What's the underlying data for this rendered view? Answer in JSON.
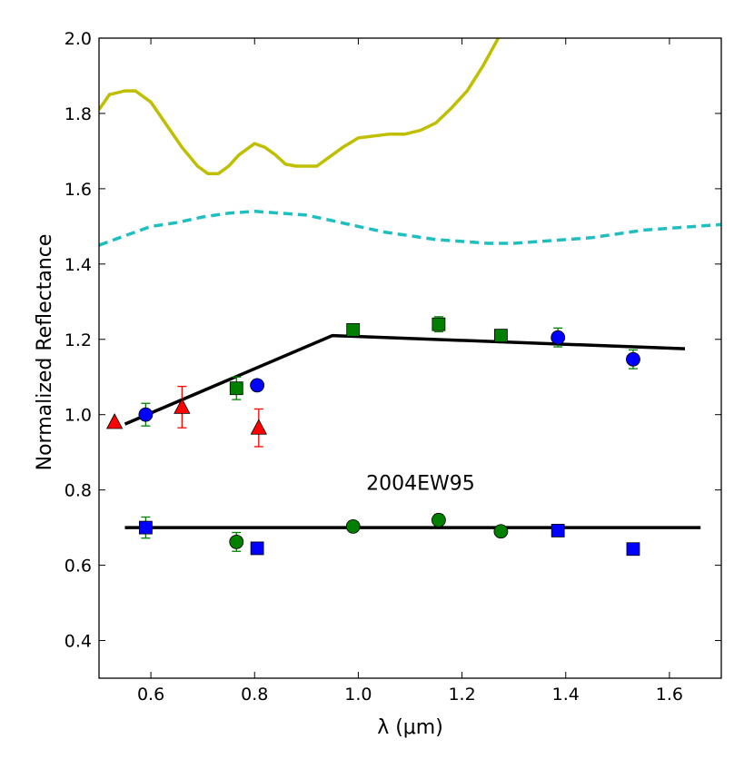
{
  "chart_data": {
    "type": "scatter",
    "title": "",
    "xlabel": "λ (μm)",
    "ylabel": "Normalized Reflectance",
    "xlim": [
      0.5,
      1.7
    ],
    "ylim": [
      0.3,
      2.0
    ],
    "xticks": [
      "0.6",
      "0.8",
      "1.0",
      "1.2",
      "1.4",
      "1.6"
    ],
    "xtick_values": [
      0.6,
      0.8,
      1.0,
      1.2,
      1.4,
      1.6
    ],
    "yticks": [
      "0.4",
      "0.6",
      "0.8",
      "1.0",
      "1.2",
      "1.4",
      "1.6",
      "1.8",
      "2.0"
    ],
    "ytick_values": [
      0.4,
      0.6,
      0.8,
      1.0,
      1.2,
      1.4,
      1.6,
      1.8,
      2.0
    ],
    "annotations": [
      {
        "text": "2004EW95",
        "x": 1.12,
        "y": 0.82
      }
    ],
    "series": [
      {
        "name": "reference-spectrum-solid",
        "kind": "line",
        "color": "#bfbf00",
        "dash": "solid",
        "points": [
          [
            0.5,
            1.81
          ],
          [
            0.52,
            1.85
          ],
          [
            0.55,
            1.86
          ],
          [
            0.57,
            1.86
          ],
          [
            0.6,
            1.83
          ],
          [
            0.63,
            1.77
          ],
          [
            0.66,
            1.71
          ],
          [
            0.69,
            1.66
          ],
          [
            0.71,
            1.64
          ],
          [
            0.73,
            1.64
          ],
          [
            0.75,
            1.66
          ],
          [
            0.77,
            1.69
          ],
          [
            0.79,
            1.71
          ],
          [
            0.8,
            1.72
          ],
          [
            0.82,
            1.71
          ],
          [
            0.84,
            1.69
          ],
          [
            0.86,
            1.665
          ],
          [
            0.88,
            1.66
          ],
          [
            0.9,
            1.66
          ],
          [
            0.92,
            1.66
          ],
          [
            0.94,
            1.68
          ],
          [
            0.97,
            1.71
          ],
          [
            1.0,
            1.735
          ],
          [
            1.03,
            1.74
          ],
          [
            1.06,
            1.745
          ],
          [
            1.09,
            1.745
          ],
          [
            1.12,
            1.755
          ],
          [
            1.15,
            1.775
          ],
          [
            1.18,
            1.815
          ],
          [
            1.21,
            1.86
          ],
          [
            1.24,
            1.925
          ],
          [
            1.27,
            2.0
          ]
        ]
      },
      {
        "name": "reference-spectrum-dashed",
        "kind": "line",
        "color": "#1fbfbf",
        "dash": "dashed",
        "points": [
          [
            0.5,
            1.45
          ],
          [
            0.55,
            1.475
          ],
          [
            0.6,
            1.5
          ],
          [
            0.65,
            1.51
          ],
          [
            0.7,
            1.525
          ],
          [
            0.75,
            1.535
          ],
          [
            0.8,
            1.54
          ],
          [
            0.85,
            1.535
          ],
          [
            0.9,
            1.53
          ],
          [
            0.95,
            1.515
          ],
          [
            1.0,
            1.5
          ],
          [
            1.05,
            1.485
          ],
          [
            1.1,
            1.475
          ],
          [
            1.15,
            1.465
          ],
          [
            1.2,
            1.46
          ],
          [
            1.25,
            1.455
          ],
          [
            1.3,
            1.455
          ],
          [
            1.35,
            1.46
          ],
          [
            1.4,
            1.465
          ],
          [
            1.45,
            1.47
          ],
          [
            1.5,
            1.48
          ],
          [
            1.55,
            1.49
          ],
          [
            1.6,
            1.495
          ],
          [
            1.65,
            1.5
          ],
          [
            1.7,
            1.505
          ]
        ]
      },
      {
        "name": "model-fit-upper",
        "kind": "line",
        "color": "#000000",
        "dash": "solid",
        "points": [
          [
            0.55,
            0.975
          ],
          [
            0.95,
            1.21
          ],
          [
            1.63,
            1.175
          ]
        ]
      },
      {
        "name": "model-fit-lower",
        "kind": "line",
        "color": "#000000",
        "dash": "solid",
        "points": [
          [
            0.55,
            0.7
          ],
          [
            1.66,
            0.7
          ]
        ]
      },
      {
        "name": "upper-circles",
        "kind": "points",
        "marker": "circle",
        "color": "#0000ff",
        "points": [
          [
            0.59,
            1.0,
            0.03
          ],
          [
            0.805,
            1.078,
            0.0
          ],
          [
            1.385,
            1.205,
            0.025
          ],
          [
            1.53,
            1.147,
            0.025
          ]
        ]
      },
      {
        "name": "upper-squares",
        "kind": "points",
        "marker": "square",
        "color": "#007f00",
        "points": [
          [
            0.765,
            1.07,
            0.03
          ],
          [
            0.99,
            1.225,
            0.0
          ],
          [
            1.155,
            1.24,
            0.02
          ],
          [
            1.275,
            1.21,
            0.015
          ]
        ]
      },
      {
        "name": "upper-triangles",
        "kind": "points",
        "marker": "triangle",
        "color": "#ff0000",
        "points": [
          [
            0.53,
            0.98,
            0.0
          ],
          [
            0.66,
            1.02,
            0.055
          ],
          [
            0.808,
            0.965,
            0.05
          ]
        ]
      },
      {
        "name": "lower-squares",
        "kind": "points",
        "marker": "square",
        "color": "#0000ff",
        "points": [
          [
            0.59,
            0.7,
            0.028
          ],
          [
            0.805,
            0.645,
            0.0
          ],
          [
            1.385,
            0.692,
            0.015
          ],
          [
            1.53,
            0.643,
            0.015
          ]
        ]
      },
      {
        "name": "lower-circles",
        "kind": "points",
        "marker": "circle",
        "color": "#007f00",
        "points": [
          [
            0.765,
            0.662,
            0.025
          ],
          [
            0.99,
            0.703,
            0.0
          ],
          [
            1.155,
            0.72,
            0.015
          ],
          [
            1.275,
            0.69,
            0.01
          ]
        ]
      }
    ]
  }
}
